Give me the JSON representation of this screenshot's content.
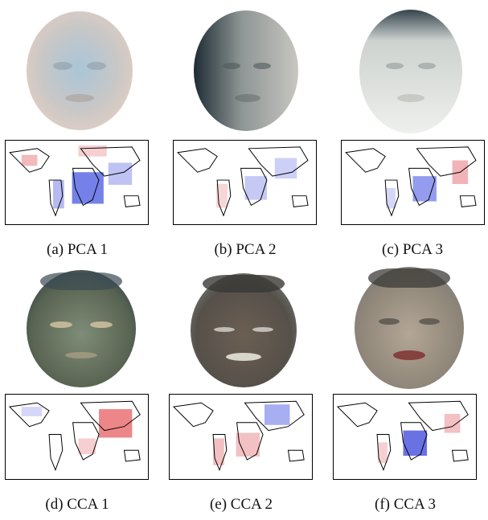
{
  "figure": {
    "panels": [
      {
        "caption": "(a) PCA 1",
        "face": {
          "skin": "#d9c4b7",
          "dark": "#9fc1cf",
          "tint": "#a7c6d8"
        },
        "mapTint": "pca1"
      },
      {
        "caption": "(b) PCA 2",
        "face": {
          "skin": "#8e9594",
          "dark": "#27343a",
          "tint": "#6f7b7b"
        },
        "mapTint": "pca2"
      },
      {
        "caption": "(c) PCA 3",
        "face": {
          "skin": "#e7ece9",
          "dark": "#3a4b53",
          "tint": "#dfe3df"
        },
        "mapTint": "pca3"
      },
      {
        "caption": "(d) CCA 1",
        "face": {
          "skin": "#7d8a73",
          "dark": "#3b4a51",
          "tint": "#6e7d65"
        },
        "mapTint": "cca1"
      },
      {
        "caption": "(e) CCA 2",
        "face": {
          "skin": "#6d6257",
          "dark": "#3a3835",
          "tint": "#6a6a62"
        },
        "mapTint": "cca2"
      },
      {
        "caption": "(f) CCA 3",
        "face": {
          "skin": "#a79a8a",
          "dark": "#3c3b38",
          "tint": "#8f887e"
        },
        "mapTint": "cca3"
      }
    ]
  },
  "colors": {
    "positive": "#e0353b",
    "negative": "#2b35d6",
    "coast": "#000000"
  }
}
